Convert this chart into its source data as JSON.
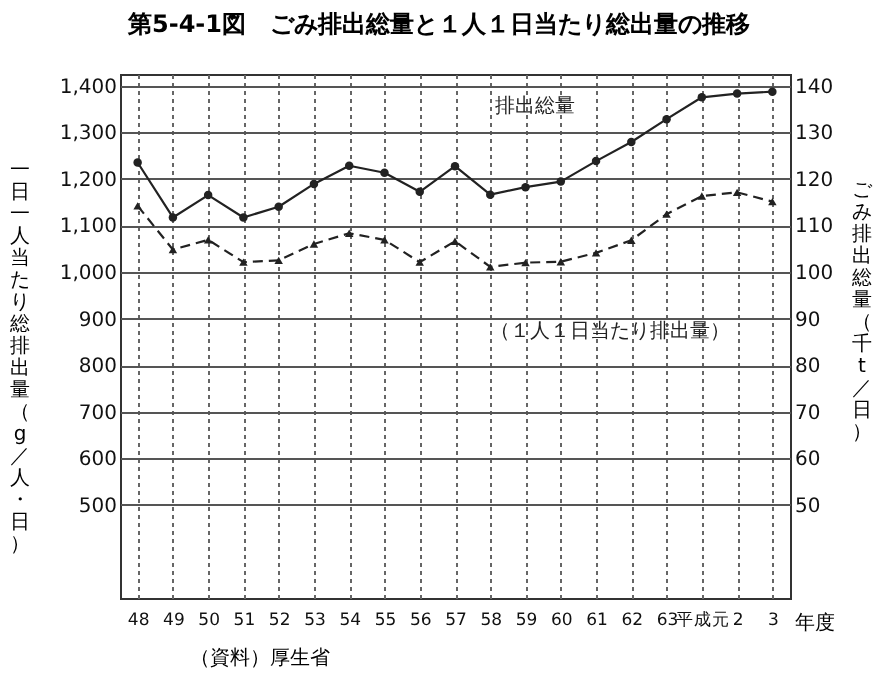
{
  "chart_data": {
    "type": "line",
    "title": "第5-4-1図　ごみ排出総量と１人１日当たり総出量の推移",
    "ylabel": "一日一人当たり総排出量（g／人・日）",
    "y2label": "ごみ排出総量（千t／日）",
    "xlabel": "年度",
    "categories": [
      "48",
      "49",
      "50",
      "51",
      "52",
      "53",
      "54",
      "55",
      "56",
      "57",
      "58",
      "59",
      "60",
      "61",
      "62",
      "63",
      "平成元",
      "2",
      "3"
    ],
    "series": [
      {
        "name": "排出総量",
        "color": "#222222",
        "axis": "y2",
        "marker": "circle",
        "line_style": "solid",
        "values": [
          123.5,
          111.7,
          116.5,
          111.7,
          114.0,
          118.9,
          122.8,
          121.3,
          117.2,
          122.7,
          116.6,
          118.2,
          119.4,
          123.8,
          127.9,
          132.8,
          137.5,
          138.3,
          138.7
        ]
      },
      {
        "name": "（１人１日当たり排出量）",
        "color": "#222222",
        "marker": "triangle",
        "line_style": "dashed",
        "values": [
          1142,
          1048,
          1069,
          1021,
          1025,
          1060,
          1083,
          1069,
          1021,
          1066,
          1011,
          1020,
          1022,
          1041,
          1068,
          1124,
          1163,
          1171,
          1151
        ]
      }
    ],
    "ylim": [
      300,
      1425
    ],
    "yticks": [
      {
        "value": 500,
        "label": "500"
      },
      {
        "value": 600,
        "label": "600"
      },
      {
        "value": 700,
        "label": "700"
      },
      {
        "value": 800,
        "label": "800"
      },
      {
        "value": 900,
        "label": "900"
      },
      {
        "value": 1000,
        "label": "1,000"
      },
      {
        "value": 1100,
        "label": "1,100"
      },
      {
        "value": 1200,
        "label": "1,200"
      },
      {
        "value": 1300,
        "label": "1,300"
      },
      {
        "value": 1400,
        "label": "1,400"
      }
    ],
    "y2lim": [
      30,
      142.5
    ],
    "y2ticks": [
      50,
      60,
      70,
      80,
      90,
      100,
      110,
      120,
      130,
      140
    ],
    "grid": true,
    "annotations": [
      "（資料）厚生省"
    ]
  }
}
